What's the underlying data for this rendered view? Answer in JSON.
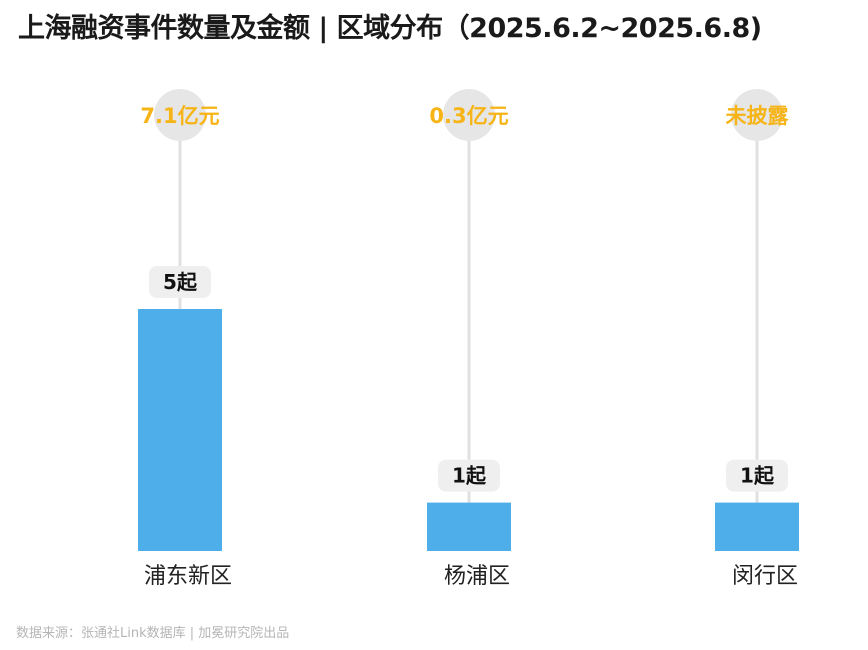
{
  "title": "上海融资事件数量及金额 | 区域分布（2025.6.2~2025.6.8)",
  "source": "数据来源：张通社Link数据库 | 加冕研究院出品",
  "chart_data": {
    "type": "bar",
    "categories": [
      "浦东新区",
      "杨浦区",
      "闵行区"
    ],
    "values": [
      5,
      1,
      1
    ],
    "value_labels": [
      "5起",
      "1起",
      "1起"
    ],
    "amount_labels": [
      "7.1亿元",
      "0.3亿元",
      "未披露"
    ],
    "ylim": [
      0,
      5
    ],
    "grid": false,
    "colors": {
      "bar": "#4daee9",
      "amount_text": "#f6b417",
      "amount_circle": "#e6e6e6",
      "stem": "#e0e0e0",
      "value_badge": "#efefef"
    }
  }
}
